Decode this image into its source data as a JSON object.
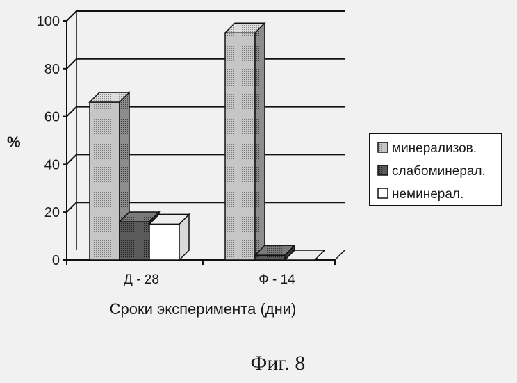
{
  "figure": {
    "caption": "Фиг. 8"
  },
  "chart_data": {
    "type": "bar",
    "categories": [
      "Д - 28",
      "Ф - 14"
    ],
    "series": [
      {
        "name": "минерализов.",
        "values": [
          66,
          95
        ],
        "color": "#bdbdbd",
        "pattern": "dotted-light"
      },
      {
        "name": "слабоминерал.",
        "values": [
          16,
          2
        ],
        "color": "#4a4a4a",
        "pattern": "dotted-dark"
      },
      {
        "name": "неминерал.",
        "values": [
          15,
          0
        ],
        "color": "#ffffff",
        "pattern": "plain"
      }
    ],
    "yticks": [
      0,
      20,
      40,
      60,
      80,
      100
    ],
    "ylim": [
      0,
      100
    ],
    "ylabel": "%",
    "xlabel": "Сроки эксперимента (дни)",
    "grid": true,
    "legend": "right",
    "style": "3d-bar"
  }
}
